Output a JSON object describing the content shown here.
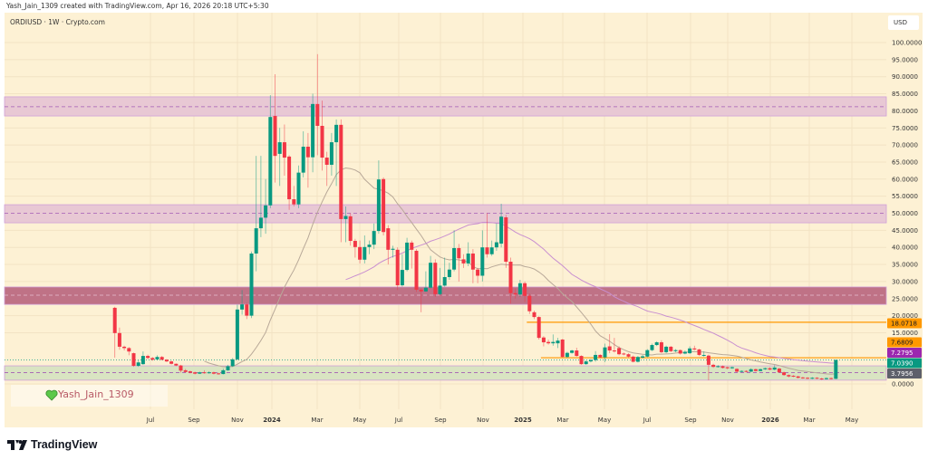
{
  "credit": "Yash_Jain_1309 created with TradingView.com, Apr 16, 2026 20:18 UTC+5:30",
  "symbol_line": "ORDIUSD · 1W · Crypto.com",
  "currency": "USD",
  "watermark": "Yash_Jain_1309",
  "brand": "TradingView",
  "colors": {
    "background": "#fdf1d4",
    "up": "#089981",
    "down": "#f23645",
    "ma_fast": "#b8a898",
    "ma_slow": "#c98fd0",
    "orange": "#ff9800",
    "zone_light": "#e8c8d4",
    "zone_dark": "#bf7286",
    "zone_green": "#d9e4c2"
  },
  "chart_data": {
    "type": "candlestick",
    "interval": "1W",
    "ylim": [
      0,
      100
    ],
    "y_ticks": [
      "100.0000",
      "95.0000",
      "90.0000",
      "85.0000",
      "80.0000",
      "75.0000",
      "70.0000",
      "65.0000",
      "60.0000",
      "55.0000",
      "50.0000",
      "45.0000",
      "40.0000",
      "35.0000",
      "30.0000",
      "25.0000",
      "20.0000",
      "15.0000",
      "0.0000"
    ],
    "x_ticks": [
      {
        "label": "Jul",
        "bold": false
      },
      {
        "label": "Sep",
        "bold": false
      },
      {
        "label": "Nov",
        "bold": false
      },
      {
        "label": "2024",
        "bold": true
      },
      {
        "label": "Mar",
        "bold": false
      },
      {
        "label": "May",
        "bold": false
      },
      {
        "label": "Jul",
        "bold": false
      },
      {
        "label": "Sep",
        "bold": false
      },
      {
        "label": "Nov",
        "bold": false
      },
      {
        "label": "2025",
        "bold": true
      },
      {
        "label": "Mar",
        "bold": false
      },
      {
        "label": "May",
        "bold": false
      },
      {
        "label": "Jul",
        "bold": false
      },
      {
        "label": "Sep",
        "bold": false
      },
      {
        "label": "Nov",
        "bold": false
      },
      {
        "label": "2026",
        "bold": true
      },
      {
        "label": "Mar",
        "bold": false
      },
      {
        "label": "May",
        "bold": false
      }
    ],
    "moving_averages": [
      {
        "period": 20,
        "color": "#b8a898"
      },
      {
        "period": 50,
        "color": "#c98fd0"
      }
    ],
    "zones": [
      {
        "low": 78.5,
        "high": 84.1,
        "mid": 81.2,
        "style": "light"
      },
      {
        "low": 47.2,
        "high": 52.5,
        "mid": 50.0,
        "style": "light"
      },
      {
        "low": 23.3,
        "high": 28.4,
        "mid": 26.0,
        "style": "dark"
      },
      {
        "low": 1.1,
        "high": 5.3,
        "mid": 3.3,
        "style": "green"
      }
    ],
    "levels": [
      {
        "value": 18.0718,
        "from_candle": 88
      },
      {
        "value": 7.6809,
        "from_candle": 91
      }
    ],
    "last_price_line": 7.039,
    "price_badges": [
      {
        "value": "18.0718",
        "color": "#ff9800"
      },
      {
        "value": "7.6809",
        "color": "#ff9800"
      },
      {
        "value": "7.2795",
        "color": "#9c27b0"
      },
      {
        "value": "7.0390",
        "color": "#089981"
      },
      {
        "value": "3.7956",
        "color": "#5d606b"
      }
    ],
    "ohlc": [
      [
        22.3,
        22.6,
        7.7,
        14.9
      ],
      [
        14.9,
        16.5,
        10,
        10.9
      ],
      [
        10.9,
        11.2,
        9.8,
        10.5
      ],
      [
        10.5,
        10.8,
        8.4,
        9.5
      ],
      [
        9.0,
        9.2,
        5.0,
        5.3
      ],
      [
        5.3,
        7.0,
        5.0,
        6.3
      ],
      [
        5.8,
        9.5,
        5.6,
        8.2
      ],
      [
        8.2,
        8.6,
        7.3,
        7.6
      ],
      [
        7.6,
        7.9,
        6.8,
        7.1
      ],
      [
        7.2,
        8.4,
        7.0,
        7.9
      ],
      [
        7.9,
        8.2,
        6.9,
        7.1
      ],
      [
        7.1,
        7.3,
        6.4,
        6.6
      ],
      [
        6.6,
        6.8,
        5.7,
        5.9
      ],
      [
        5.9,
        6.0,
        5.2,
        5.4
      ],
      [
        5.4,
        5.6,
        3.3,
        3.9
      ],
      [
        4.0,
        4.4,
        3.3,
        3.5
      ],
      [
        3.7,
        3.9,
        3.1,
        3.3
      ],
      [
        3.4,
        3.6,
        2.8,
        3.0
      ],
      [
        3.0,
        3.6,
        2.9,
        3.4
      ],
      [
        3.4,
        4.0,
        3.0,
        3.2
      ],
      [
        3.2,
        3.7,
        3.0,
        3.4
      ],
      [
        3.4,
        3.6,
        2.8,
        3.0
      ],
      [
        3.1,
        3.3,
        2.7,
        2.9
      ],
      [
        2.9,
        4.5,
        2.8,
        4.0
      ],
      [
        4.0,
        5.6,
        3.8,
        5.2
      ],
      [
        5.2,
        7.6,
        5.0,
        7.2
      ],
      [
        7.2,
        23.2,
        7.0,
        21.8
      ],
      [
        21.8,
        27.5,
        20.3,
        23.3
      ],
      [
        23.3,
        23.8,
        19.0,
        20.0
      ],
      [
        20.0,
        38.8,
        19.3,
        38.2
      ],
      [
        38.2,
        66.8,
        33.0,
        45.6
      ],
      [
        45.6,
        66.8,
        43.0,
        48.7
      ],
      [
        48.7,
        60,
        44,
        52.3
      ],
      [
        52.3,
        84.6,
        51.5,
        78.2
      ],
      [
        78.5,
        90.7,
        59,
        66.8
      ],
      [
        67.4,
        75,
        58,
        70.8
      ],
      [
        70.8,
        76,
        61,
        66.3
      ],
      [
        66.6,
        67,
        51,
        54.1
      ],
      [
        54.1,
        58,
        52,
        52.6
      ],
      [
        52.6,
        64,
        51.5,
        61.9
      ],
      [
        61.9,
        74,
        60.5,
        69.5
      ],
      [
        69.5,
        73.5,
        57.5,
        66.4
      ],
      [
        66.4,
        85,
        62,
        82
      ],
      [
        82,
        96.6,
        67,
        75.6
      ],
      [
        75.6,
        83,
        62.5,
        66.3
      ],
      [
        66.3,
        68,
        58,
        64.2
      ],
      [
        64.2,
        73.5,
        61,
        70.8
      ],
      [
        70.8,
        77.5,
        58,
        75.9
      ],
      [
        75.9,
        77.5,
        41.5,
        48.3
      ],
      [
        48.3,
        52,
        41.5,
        49.2
      ],
      [
        49.1,
        50,
        40.5,
        41.9
      ],
      [
        41.9,
        42.5,
        37,
        40.1
      ],
      [
        40.1,
        42.0,
        35.3,
        36.4
      ],
      [
        36.4,
        43.5,
        35.3,
        40.1
      ],
      [
        40.1,
        42,
        38,
        40.8
      ],
      [
        40.8,
        47,
        39.5,
        44.8
      ],
      [
        44.8,
        65.5,
        44,
        59.9
      ],
      [
        60,
        60.5,
        43.5,
        44.5
      ],
      [
        45.6,
        46.5,
        35,
        39.3
      ],
      [
        39.3,
        40.5,
        37,
        39.6
      ],
      [
        39.3,
        40,
        27.5,
        28.9
      ],
      [
        28.9,
        38,
        28.5,
        33.4
      ],
      [
        33.4,
        42.8,
        33,
        41.4
      ],
      [
        41.4,
        42,
        33.8,
        39.3
      ],
      [
        39.0,
        39.5,
        27,
        27.6
      ],
      [
        27.6,
        28,
        21,
        27.1
      ],
      [
        27.1,
        33,
        27,
        28.2
      ],
      [
        28.2,
        37.5,
        28,
        35.5
      ],
      [
        35.5,
        36.5,
        25.5,
        26.3
      ],
      [
        26.3,
        34,
        26,
        28.8
      ],
      [
        28.8,
        37,
        28.5,
        31.3
      ],
      [
        31.3,
        35.5,
        30.5,
        33.5
      ],
      [
        33.5,
        45,
        33,
        39.8
      ],
      [
        39.8,
        41,
        30,
        36.8
      ],
      [
        36.5,
        38,
        34,
        35.3
      ],
      [
        35.3,
        41.5,
        34.5,
        38.2
      ],
      [
        38.2,
        39.5,
        29.5,
        33.5
      ],
      [
        33.5,
        34,
        29.5,
        31.7
      ],
      [
        31.7,
        45,
        30,
        40.0
      ],
      [
        40,
        50,
        37,
        38
      ],
      [
        38,
        42,
        37.5,
        40
      ],
      [
        40,
        47,
        39,
        41.5
      ],
      [
        41.1,
        52.8,
        40,
        49.0
      ],
      [
        48.8,
        49.5,
        34,
        35.8
      ],
      [
        35.8,
        37,
        23.5,
        26.6
      ],
      [
        26.6,
        28,
        25,
        26.2
      ],
      [
        26.2,
        30.5,
        25.5,
        29.5
      ],
      [
        29.5,
        30,
        24,
        25.8
      ],
      [
        25.8,
        26.5,
        20.5,
        21.3
      ],
      [
        21.0,
        21.5,
        19,
        19.6
      ],
      [
        19.6,
        19.8,
        13,
        13.5
      ],
      [
        13.6,
        14,
        11,
        12.2
      ],
      [
        12.3,
        13,
        11.5,
        11.9
      ],
      [
        11.9,
        14.5,
        11.2,
        12.3
      ],
      [
        11.9,
        13.5,
        10.5,
        12.7
      ],
      [
        13.0,
        13.2,
        7.8,
        7.9
      ],
      [
        7.9,
        9.4,
        7.6,
        9.1
      ],
      [
        9.1,
        10,
        8.9,
        9.8
      ],
      [
        9.8,
        10.6,
        8.0,
        8.2
      ],
      [
        8.2,
        8.4,
        5.6,
        5.8
      ],
      [
        5.8,
        6.9,
        5.6,
        6.6
      ],
      [
        6.6,
        7.3,
        6.3,
        7.0
      ],
      [
        7.0,
        9.6,
        6.5,
        8.5
      ],
      [
        8.5,
        8.7,
        7.5,
        7.8
      ],
      [
        7.8,
        11.8,
        6.4,
        10.7
      ],
      [
        11,
        14.6,
        9.0,
        9.8
      ],
      [
        9.8,
        13.5,
        9.2,
        9.6
      ],
      [
        10.5,
        11,
        8.4,
        8.7
      ],
      [
        8.9,
        9.2,
        8.4,
        8.7
      ],
      [
        8.7,
        9.0,
        7.7,
        8.0
      ],
      [
        8.0,
        8.3,
        6.3,
        6.5
      ],
      [
        6.5,
        8.2,
        6.3,
        7.9
      ],
      [
        7.7,
        8.5,
        7.5,
        8.1
      ],
      [
        8.0,
        10.2,
        7.8,
        9.9
      ],
      [
        9.9,
        11.8,
        9.6,
        11.4
      ],
      [
        11.4,
        12.5,
        11.1,
        12.2
      ],
      [
        12.2,
        12.8,
        9.0,
        9.3
      ],
      [
        9.3,
        11.2,
        9.0,
        10.9
      ],
      [
        10.9,
        11.1,
        9.3,
        9.6
      ],
      [
        9.6,
        10.2,
        9.3,
        9.9
      ],
      [
        9.9,
        10.1,
        8.6,
        8.9
      ],
      [
        8.9,
        9.8,
        8.7,
        9.4
      ],
      [
        9.0,
        11,
        8.8,
        10.4
      ],
      [
        10.4,
        11.2,
        9.9,
        10.1
      ],
      [
        10.1,
        10.3,
        8.2,
        8.5
      ],
      [
        8.3,
        9.5,
        8.0,
        8.5
      ],
      [
        8.3,
        8.6,
        1.1,
        5.6
      ],
      [
        5.6,
        5.9,
        4.7,
        5.0
      ],
      [
        5.0,
        5.5,
        4.8,
        5.2
      ],
      [
        5.2,
        5.4,
        4.5,
        4.7
      ],
      [
        4.9,
        5.1,
        4.3,
        4.6
      ],
      [
        4.6,
        5.1,
        4.4,
        4.9
      ],
      [
        4.4,
        4.6,
        3.4,
        3.6
      ],
      [
        3.6,
        4.0,
        3.5,
        3.8
      ],
      [
        3.8,
        4.0,
        3.4,
        3.6
      ],
      [
        3.6,
        4.6,
        3.5,
        4.3
      ],
      [
        4.3,
        4.5,
        3.6,
        3.8
      ],
      [
        3.8,
        4.5,
        3.7,
        4.3
      ],
      [
        4.3,
        4.8,
        4.1,
        4.6
      ],
      [
        4.6,
        4.9,
        4.0,
        4.2
      ],
      [
        4.2,
        5.5,
        4.0,
        4.8
      ],
      [
        4.5,
        4.7,
        3.2,
        3.4
      ],
      [
        3.4,
        3.6,
        2.4,
        2.6
      ],
      [
        2.6,
        2.8,
        1.9,
        2.2
      ],
      [
        2.4,
        2.6,
        2.0,
        2.2
      ],
      [
        2.2,
        2.4,
        1.6,
        1.8
      ],
      [
        1.9,
        2.1,
        1.5,
        1.7
      ],
      [
        1.8,
        2.0,
        1.4,
        1.6
      ],
      [
        1.6,
        2.0,
        1.4,
        1.8
      ],
      [
        1.8,
        2.0,
        1.4,
        1.6
      ],
      [
        1.6,
        1.8,
        1.2,
        1.4
      ],
      [
        1.4,
        1.9,
        1.3,
        1.7
      ],
      [
        1.7,
        1.9,
        1.3,
        1.5
      ],
      [
        1.5,
        7.1,
        1.4,
        7.039
      ]
    ]
  }
}
